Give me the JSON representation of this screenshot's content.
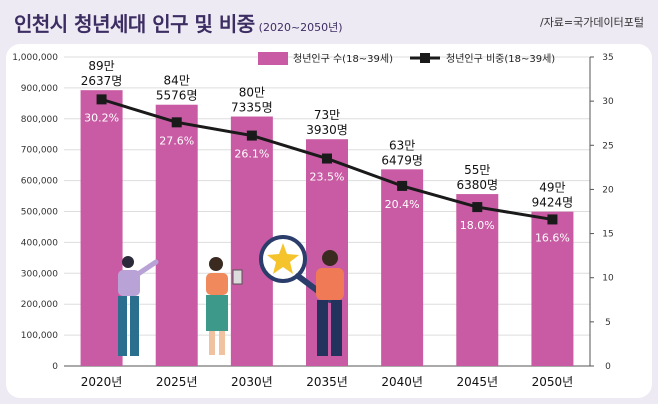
{
  "header": {
    "title": "인천시 청년세대 인구 및 비중",
    "title_sub": "(2020~2050년)",
    "source": "/자료=국가데이터포털"
  },
  "colors": {
    "bar": "#c85ba3",
    "line": "#1a1a1a",
    "title": "#3c2d63"
  },
  "chart_data": {
    "type": "bar",
    "categories": [
      "2020년",
      "2025년",
      "2030년",
      "2035년",
      "2040년",
      "2045년",
      "2050년"
    ],
    "series": [
      {
        "name": "청년인구 수(18~39세)",
        "type": "bar",
        "axis": "left",
        "values": [
          892637,
          845576,
          807335,
          733930,
          636479,
          556380,
          499424
        ],
        "labels_top": [
          "89만",
          "84만",
          "80만",
          "73만",
          "63만",
          "55만",
          "49만"
        ],
        "labels_bottom": [
          "2637명",
          "5576명",
          "7335명",
          "3930명",
          "6479명",
          "6380명",
          "9424명"
        ]
      },
      {
        "name": "청년인구 비중(18~39세)",
        "type": "line",
        "axis": "right",
        "values": [
          30.2,
          27.6,
          26.1,
          23.5,
          20.4,
          18.0,
          16.6
        ],
        "labels": [
          "30.2%",
          "27.6%",
          "26.1%",
          "23.5%",
          "20.4%",
          "18.0%",
          "16.6%"
        ]
      }
    ],
    "y_left": {
      "min": 0,
      "max": 1000000,
      "step": 100000,
      "ticks": [
        "0",
        "100,000",
        "200,000",
        "300,000",
        "400,000",
        "500,000",
        "600,000",
        "700,000",
        "800,000",
        "900,000",
        "1,000,000"
      ]
    },
    "y_right": {
      "min": 0,
      "max": 35,
      "step": 5,
      "ticks": [
        "0",
        "5",
        "10",
        "15",
        "20",
        "25",
        "30",
        "35"
      ]
    },
    "legend_position": "top-right"
  }
}
